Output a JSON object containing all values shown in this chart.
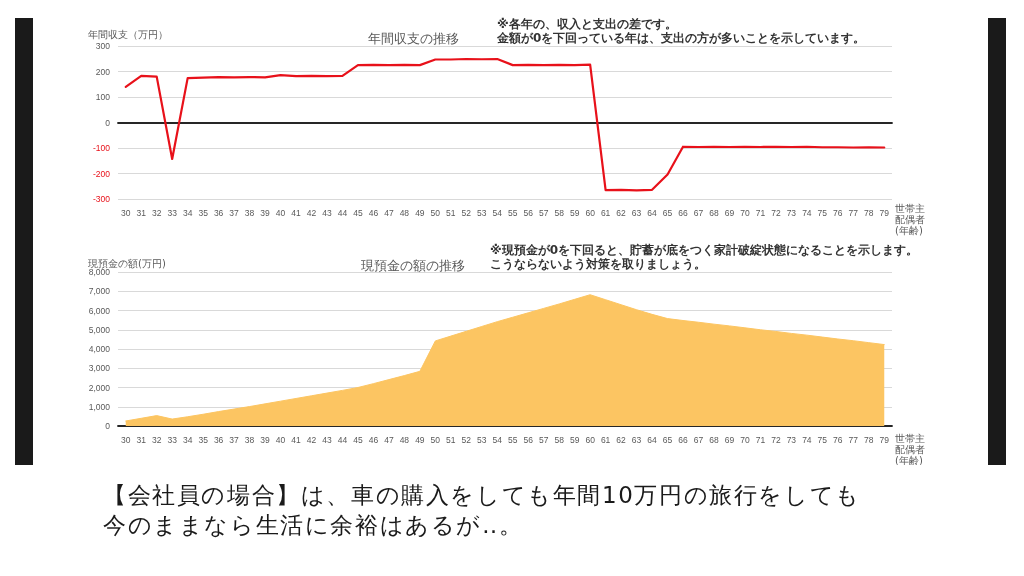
{
  "chart_data": [
    {
      "type": "line",
      "title": "年間収支の推移",
      "ylabel": "年間収支（万円）",
      "xlabel": "世帯主配偶者(年齢)",
      "annotations": [
        "※各年の、収入と支出の差です。",
        "金額が0を下回っている年は、支出の方が多いことを示しています。"
      ],
      "categories": [
        "30",
        "31",
        "32",
        "33",
        "34",
        "35",
        "36",
        "37",
        "38",
        "39",
        "40",
        "41",
        "42",
        "43",
        "44",
        "45",
        "46",
        "47",
        "48",
        "49",
        "50",
        "51",
        "52",
        "53",
        "54",
        "55",
        "56",
        "57",
        "58",
        "59",
        "60",
        "61",
        "62",
        "63",
        "64",
        "65",
        "66",
        "67",
        "68",
        "69",
        "70",
        "71",
        "72",
        "73",
        "74",
        "75",
        "76",
        "77",
        "78",
        "79"
      ],
      "series": [
        {
          "color": "#e8111a",
          "values": [
            140,
            183,
            180,
            -143,
            174,
            176,
            178,
            177,
            178,
            177,
            186,
            182,
            183,
            182,
            183,
            225,
            226,
            225,
            226,
            225,
            247,
            247,
            249,
            248,
            249,
            225,
            226,
            225,
            226,
            225,
            227,
            -265,
            -264,
            -266,
            -264,
            -204,
            -95,
            -96,
            -95,
            -96,
            -95,
            -96,
            -95,
            -96,
            -95,
            -97,
            -97,
            -98,
            -97,
            -98
          ]
        }
      ],
      "ylim": [
        -300,
        300
      ],
      "yticks": [
        -300,
        -200,
        -100,
        0,
        100,
        200,
        300
      ],
      "grid": "y"
    },
    {
      "type": "area",
      "title": "現預金の額の推移",
      "ylabel": "現預金の額(万円)",
      "xlabel": "世帯主配偶者(年齢)",
      "annotations": [
        "※現預金が0を下回ると、貯蓄が底をつく家計破綻状態になることを示します。",
        "こうならないよう対策を取りましょう。"
      ],
      "categories": [
        "30",
        "31",
        "32",
        "33",
        "34",
        "35",
        "36",
        "37",
        "38",
        "39",
        "40",
        "41",
        "42",
        "43",
        "44",
        "45",
        "46",
        "47",
        "48",
        "49",
        "50",
        "51",
        "52",
        "53",
        "54",
        "55",
        "56",
        "57",
        "58",
        "59",
        "60",
        "61",
        "62",
        "63",
        "64",
        "65",
        "66",
        "67",
        "68",
        "69",
        "70",
        "71",
        "72",
        "73",
        "74",
        "75",
        "76",
        "77",
        "78",
        "79"
      ],
      "series": [
        {
          "color": "#fcc562",
          "values": [
            260,
            400,
            540,
            360,
            480,
            610,
            750,
            880,
            1010,
            1150,
            1290,
            1430,
            1570,
            1710,
            1850,
            2000,
            2200,
            2410,
            2620,
            2840,
            4420,
            4670,
            4920,
            5170,
            5420,
            5650,
            5880,
            6110,
            6340,
            6580,
            6820,
            6560,
            6300,
            6040,
            5800,
            5580,
            5480,
            5390,
            5290,
            5200,
            5100,
            5000,
            4910,
            4810,
            4720,
            4620,
            4520,
            4430,
            4330,
            4230
          ]
        }
      ],
      "ylim": [
        0,
        8000
      ],
      "yticks": [
        0,
        {
          "value": 1000,
          "label": "1,000"
        },
        {
          "value": 2000,
          "label": "2,000"
        },
        {
          "value": 3000,
          "label": "3,000"
        },
        {
          "value": 4000,
          "label": "4,000"
        },
        {
          "value": 5000,
          "label": "5,000"
        },
        {
          "value": 6000,
          "label": "6,000"
        },
        {
          "value": 7000,
          "label": "7,000"
        },
        {
          "value": 8000,
          "label": "8,000"
        }
      ],
      "grid": "y"
    },
    {
      "type": "other",
      "annotations": [
        "【会社員の場合】は、車の購入をしても年間10万円の旅行をしても",
        "今のままなら生活に余裕はあるが‥。"
      ]
    }
  ]
}
